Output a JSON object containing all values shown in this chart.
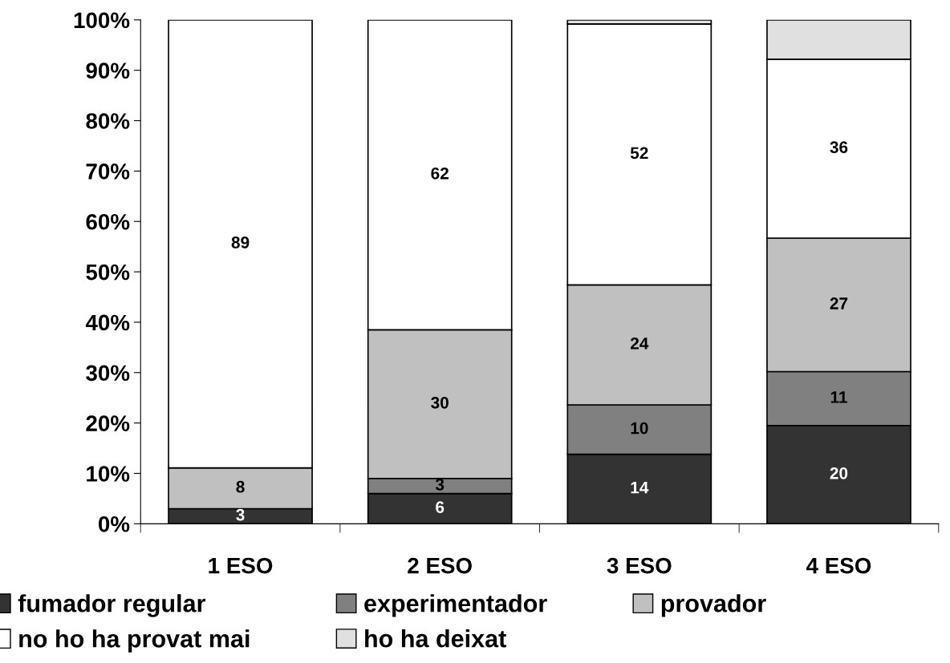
{
  "chart_data": {
    "type": "bar",
    "stacked": true,
    "categories": [
      "1 ESO",
      "2 ESO",
      "3 ESO",
      "4 ESO"
    ],
    "series": [
      {
        "name": "fumador regular",
        "color": "#333333",
        "values": [
          3.0,
          6.0,
          13.8,
          19.5
        ],
        "value_labels": [
          "3",
          "6",
          "14",
          "20"
        ]
      },
      {
        "name": "experimentador",
        "color": "#808080",
        "values": [
          null,
          3.0,
          9.8,
          10.7
        ],
        "value_labels": [
          null,
          "3",
          "10",
          "11"
        ]
      },
      {
        "name": "provador",
        "color": "#c0c0c0",
        "values": [
          8.1,
          29.5,
          23.8,
          26.5
        ],
        "value_labels": [
          "8",
          "30",
          "24",
          "27"
        ]
      },
      {
        "name": "no ho ha provat mai",
        "color": "#ffffff",
        "values": [
          88.9,
          61.5,
          51.8,
          35.5
        ],
        "value_labels": [
          "89",
          "62",
          "52",
          "36"
        ]
      },
      {
        "name": "ho ha deixat",
        "color": "#e0e0e0",
        "values": [
          null,
          null,
          0.8,
          7.8
        ],
        "value_labels": [
          null,
          null,
          null,
          null
        ]
      }
    ],
    "ylim": [
      0,
      100
    ],
    "yticks": [
      {
        "value": 0,
        "label": "0%"
      },
      {
        "value": 10,
        "label": "10%"
      },
      {
        "value": 20,
        "label": "20%"
      },
      {
        "value": 30,
        "label": "30%"
      },
      {
        "value": 40,
        "label": "40%"
      },
      {
        "value": 50,
        "label": "50%"
      },
      {
        "value": 60,
        "label": "60%"
      },
      {
        "value": 70,
        "label": "70%"
      },
      {
        "value": 80,
        "label": "80%"
      },
      {
        "value": 90,
        "label": "90%"
      },
      {
        "value": 100,
        "label": "100%"
      }
    ],
    "grid": false,
    "legend": "bottom"
  }
}
